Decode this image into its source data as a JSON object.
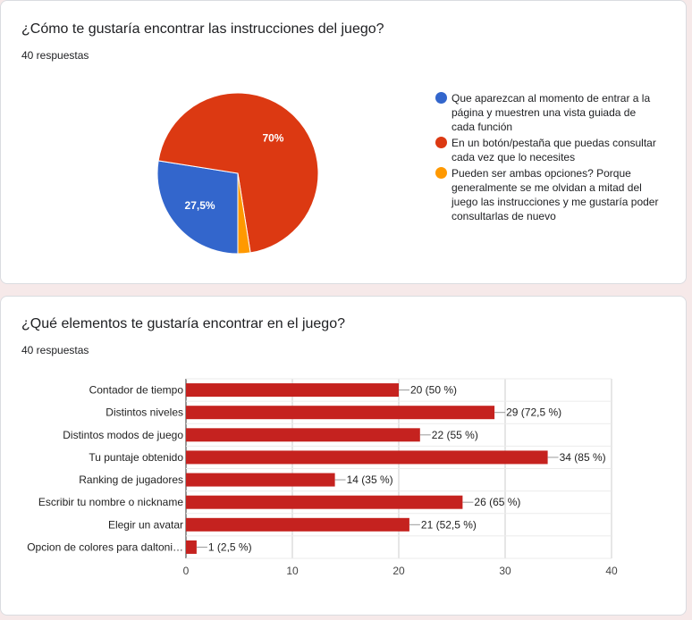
{
  "questions": [
    {
      "title": "¿Cómo te gustaría encontrar las instrucciones del juego?",
      "responses": "40 respuestas"
    },
    {
      "title": "¿Qué elementos te gustaría encontrar en el juego?",
      "responses": "40 respuestas"
    }
  ],
  "chart_data": [
    {
      "type": "pie",
      "slices": [
        {
          "label": "Que aparezcan al momento de entrar a la página y muestren una vista guiada de cada función",
          "value": 27.5,
          "display": "27,5%",
          "color": "#3366cc"
        },
        {
          "label": "En un botón/pestaña que puedas consultar cada vez que lo necesites",
          "value": 70,
          "display": "70%",
          "color": "#dc3912"
        },
        {
          "label": "Pueden ser ambas opciones? Porque generalmente se me olvidan a mitad del juego las instrucciones y me gustaría poder consultarlas de nuevo",
          "value": 2.5,
          "display": "",
          "color": "#ff9900"
        }
      ],
      "legend_position": "right"
    },
    {
      "type": "bar",
      "orientation": "horizontal",
      "categories": [
        "Contador de tiempo",
        "Distintos niveles",
        "Distintos modos de juego",
        "Tu puntaje obtenido",
        "Ranking de jugadores",
        "Escribir tu nombre o nickname",
        "Elegir un avatar",
        "Opcion de colores para daltoni…"
      ],
      "values": [
        20,
        29,
        22,
        34,
        14,
        26,
        21,
        1
      ],
      "data_labels": [
        "20 (50 %)",
        "29 (72,5 %)",
        "22 (55 %)",
        "34 (85 %)",
        "14 (35 %)",
        "26 (65 %)",
        "21 (52,5 %)",
        "1 (2,5 %)"
      ],
      "xlim": [
        0,
        40
      ],
      "xticks": [
        "0",
        "10",
        "20",
        "30",
        "40"
      ],
      "grid": true,
      "color": "#c5221f"
    }
  ]
}
